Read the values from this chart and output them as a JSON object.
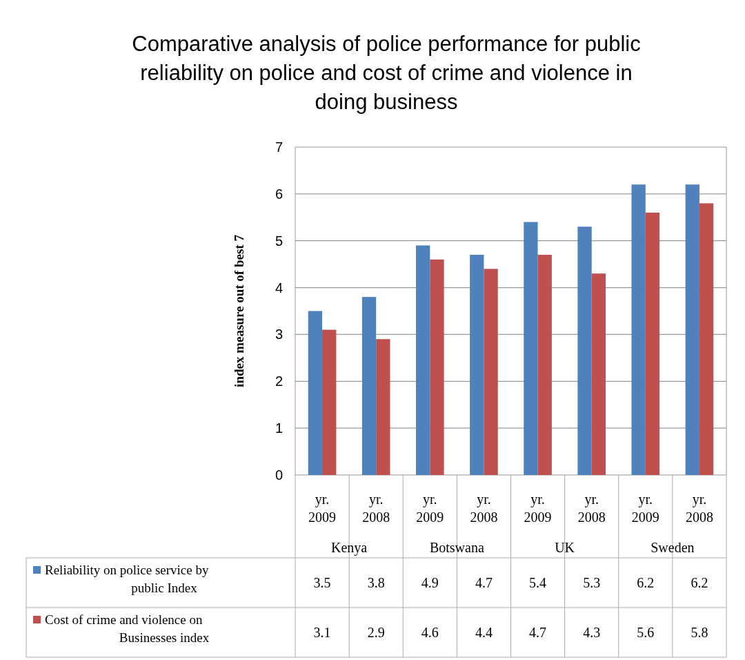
{
  "chart_data": {
    "type": "bar",
    "title": "Comparative analysis  of police performance for  public reliability on police and cost of crime and violence in doing business",
    "ylabel": "index measure out of best 7",
    "categories": [
      "yr. 2009",
      "yr. 2008",
      "yr. 2009",
      "yr. 2008",
      "yr. 2009",
      "yr. 2008",
      "yr. 2009",
      "yr. 2008"
    ],
    "annotations": [
      "Kenya",
      "Botswana",
      "UK",
      "Sweden"
    ],
    "series": [
      {
        "name": "Reliability on police service by public Index",
        "color": "#4f81bd",
        "values": [
          3.5,
          3.8,
          4.9,
          4.7,
          5.4,
          5.3,
          6.2,
          6.2
        ]
      },
      {
        "name": "Cost of crime and violence on Businesses index",
        "color": "#c0504d",
        "values": [
          3.1,
          2.9,
          4.6,
          4.4,
          4.7,
          4.3,
          5.6,
          5.8
        ]
      }
    ],
    "ylim": [
      0,
      7
    ],
    "yticks": [
      0,
      1,
      2,
      3,
      4,
      5,
      6,
      7
    ],
    "grid": "y",
    "data_labels": true,
    "legend": "bottom"
  }
}
